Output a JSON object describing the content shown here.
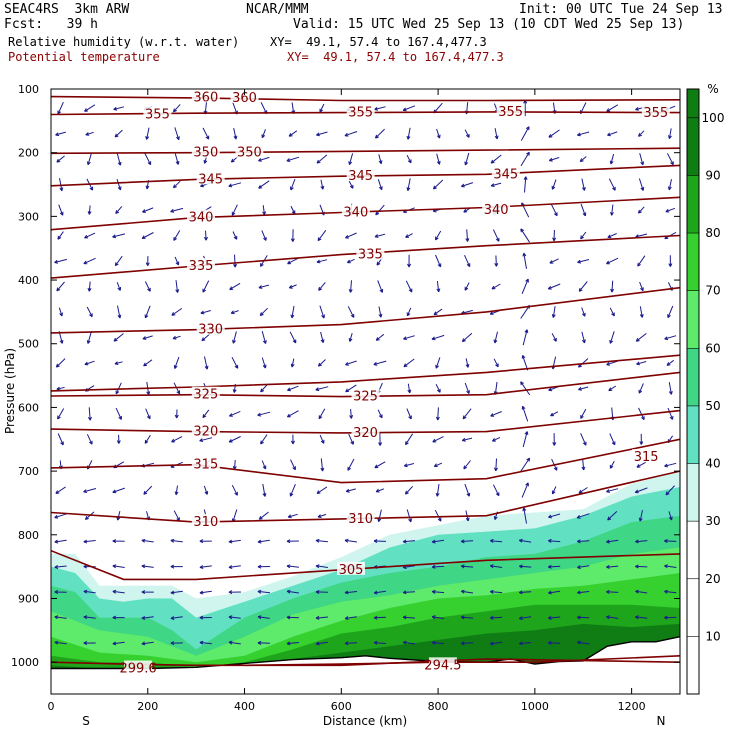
{
  "header": {
    "model": "SEAC4RS  3km ARW",
    "center": "NCAR/MMM",
    "init": "Init: 00 UTC Tue 24 Sep 13",
    "fcst": "Fcst:   39 h",
    "valid": "Valid: 15 UTC Wed 25 Sep 13 (10 CDT Wed 25 Sep 13)",
    "field1": "Relative humidity (w.r.t. water)",
    "field1_xy": "XY=  49.1, 57.4 to 167.4,477.3",
    "field2": "Potential temperature",
    "field2_xy": "XY=  49.1, 57.4 to 167.4,477.3"
  },
  "chart_data": {
    "type": "cross-section",
    "xlabel": "Distance (km)",
    "ylabel": "Pressure (hPa)",
    "xlim": [
      0,
      1300
    ],
    "ylim": [
      1050,
      100
    ],
    "x_ticks": [
      0,
      200,
      400,
      600,
      800,
      1000,
      1200
    ],
    "y_ticks": [
      100,
      200,
      300,
      400,
      500,
      600,
      700,
      800,
      900,
      1000
    ],
    "end_labels": {
      "left": "S",
      "right": "N"
    },
    "colorbar": {
      "unit": "%",
      "ticks": [
        10,
        20,
        30,
        40,
        50,
        60,
        70,
        80,
        90,
        100
      ],
      "bins": [
        {
          "range": [
            0,
            10
          ],
          "color": "#ffffff"
        },
        {
          "range": [
            10,
            20
          ],
          "color": "#ffffff"
        },
        {
          "range": [
            20,
            30
          ],
          "color": "#ffffff"
        },
        {
          "range": [
            30,
            40
          ],
          "color": "#cff5ee"
        },
        {
          "range": [
            40,
            50
          ],
          "color": "#62e0c2"
        },
        {
          "range": [
            50,
            60
          ],
          "color": "#3fd685"
        },
        {
          "range": [
            60,
            70
          ],
          "color": "#5eea6a"
        },
        {
          "range": [
            70,
            80
          ],
          "color": "#36d12f"
        },
        {
          "range": [
            80,
            90
          ],
          "color": "#1fa51c"
        },
        {
          "range": [
            90,
            105
          ],
          "color": "#0f7d14"
        }
      ]
    },
    "theta_contours": [
      {
        "label": "360",
        "x": [
          0,
          300,
          600,
          900,
          1300
        ],
        "y": [
          112,
          114,
          118,
          118,
          117
        ],
        "label_at": [
          [
            320,
            113
          ],
          [
            400,
            114
          ]
        ]
      },
      {
        "label": "355",
        "x": [
          0,
          300,
          600,
          900,
          1300
        ],
        "y": [
          140,
          138,
          137,
          136,
          137
        ],
        "label_at": [
          [
            220,
            140
          ],
          [
            640,
            137
          ],
          [
            950,
            136
          ],
          [
            1250,
            138
          ]
        ]
      },
      {
        "label": "350",
        "x": [
          0,
          300,
          600,
          900,
          1300
        ],
        "y": [
          201,
          200,
          198,
          196,
          193
        ],
        "label_at": [
          [
            320,
            200
          ],
          [
            410,
            200
          ]
        ]
      },
      {
        "label": "345",
        "x": [
          0,
          300,
          600,
          900,
          1300
        ],
        "y": [
          252,
          242,
          237,
          234,
          220
        ],
        "label_at": [
          [
            330,
            242
          ],
          [
            640,
            237
          ],
          [
            940,
            234
          ]
        ]
      },
      {
        "label": "340",
        "x": [
          0,
          300,
          600,
          900,
          1300
        ],
        "y": [
          321,
          302,
          294,
          286,
          270
        ],
        "label_at": [
          [
            310,
            302
          ],
          [
            630,
            294
          ],
          [
            920,
            290
          ]
        ]
      },
      {
        "label": "335",
        "x": [
          0,
          300,
          600,
          900,
          1300
        ],
        "y": [
          397,
          378,
          360,
          346,
          330
        ],
        "label_at": [
          [
            310,
            378
          ],
          [
            660,
            360
          ]
        ]
      },
      {
        "label": "330",
        "x": [
          0,
          300,
          600,
          900,
          1300
        ],
        "y": [
          483,
          478,
          470,
          450,
          412
        ],
        "label_at": [
          [
            330,
            478
          ]
        ]
      },
      {
        "label": "",
        "x": [
          0,
          300,
          600,
          900,
          1300
        ],
        "y": [
          574,
          568,
          560,
          545,
          518
        ],
        "label_at": []
      },
      {
        "label": "325",
        "x": [
          0,
          300,
          600,
          900,
          1300
        ],
        "y": [
          582,
          580,
          583,
          580,
          545
        ],
        "label_at": [
          [
            320,
            580
          ],
          [
            650,
            583
          ]
        ]
      },
      {
        "label": "320",
        "x": [
          0,
          300,
          600,
          900,
          1300
        ],
        "y": [
          634,
          638,
          640,
          638,
          605
        ],
        "label_at": [
          [
            320,
            638
          ],
          [
            650,
            640
          ]
        ]
      },
      {
        "label": "315",
        "x": [
          0,
          300,
          600,
          900,
          1300
        ],
        "y": [
          695,
          690,
          718,
          712,
          650
        ],
        "label_at": [
          [
            320,
            690
          ],
          [
            1230,
            678
          ]
        ]
      },
      {
        "label": "310",
        "x": [
          0,
          300,
          600,
          900,
          1300
        ],
        "y": [
          765,
          780,
          775,
          770,
          700
        ],
        "label_at": [
          [
            320,
            780
          ],
          [
            640,
            775
          ]
        ]
      },
      {
        "label": "305",
        "x": [
          0,
          150,
          300,
          600,
          900,
          1300
        ],
        "y": [
          825,
          870,
          870,
          855,
          840,
          830
        ],
        "label_at": [
          [
            620,
            855
          ]
        ]
      },
      {
        "label": "299.6",
        "x": [
          0,
          150,
          300,
          600,
          900,
          1300
        ],
        "y": [
          1000,
          1003,
          1005,
          1005,
          995,
          1000
        ],
        "label_at": [
          [
            180,
            1010
          ]
        ]
      },
      {
        "label": "294.5",
        "x": [
          400,
          600,
          800,
          1000,
          1300
        ],
        "y": [
          1005,
          1003,
          1000,
          1000,
          990
        ],
        "label_at": [
          [
            810,
            1005
          ]
        ]
      }
    ],
    "terrain": {
      "x": [
        0,
        100,
        200,
        300,
        400,
        500,
        600,
        650,
        700,
        800,
        900,
        950,
        1000,
        1050,
        1100,
        1150,
        1200,
        1250,
        1300
      ],
      "p": [
        1010,
        1010,
        1010,
        1008,
        1002,
        996,
        993,
        990,
        994,
        999,
        1000,
        995,
        1003,
        999,
        998,
        975,
        968,
        968,
        960
      ]
    },
    "rh_shading": [
      {
        "range": [
          30,
          40
        ],
        "x": [
          0,
          50,
          100,
          150,
          200,
          250,
          300,
          400,
          500,
          600,
          700,
          800,
          900,
          1000,
          1100,
          1200,
          1300
        ],
        "top": [
          830,
          830,
          880,
          880,
          880,
          880,
          900,
          890,
          865,
          835,
          800,
          785,
          770,
          765,
          760,
          720,
          700
        ]
      },
      {
        "range": [
          40,
          50
        ],
        "x": [
          0,
          50,
          100,
          150,
          200,
          250,
          300,
          400,
          500,
          600,
          700,
          800,
          900,
          1000,
          1100,
          1200,
          1300
        ],
        "top": [
          850,
          860,
          900,
          905,
          900,
          900,
          930,
          905,
          880,
          855,
          820,
          800,
          795,
          790,
          770,
          740,
          725
        ]
      },
      {
        "range": [
          50,
          60
        ],
        "x": [
          0,
          50,
          100,
          150,
          200,
          250,
          300,
          400,
          500,
          600,
          700,
          800,
          900,
          1000,
          1100,
          1200,
          1300
        ],
        "top": [
          880,
          890,
          930,
          930,
          930,
          950,
          980,
          930,
          900,
          875,
          860,
          850,
          835,
          830,
          810,
          780,
          770
        ]
      },
      {
        "range": [
          60,
          70
        ],
        "x": [
          0,
          100,
          200,
          300,
          400,
          500,
          600,
          700,
          800,
          900,
          1000,
          1100,
          1200,
          1300
        ],
        "top": [
          920,
          950,
          960,
          990,
          960,
          925,
          905,
          895,
          880,
          870,
          860,
          850,
          830,
          820
        ]
      },
      {
        "range": [
          70,
          80
        ],
        "x": [
          0,
          100,
          200,
          300,
          400,
          500,
          600,
          700,
          800,
          900,
          1000,
          1100,
          1200,
          1300
        ],
        "top": [
          960,
          985,
          990,
          1000,
          990,
          960,
          935,
          915,
          900,
          895,
          885,
          880,
          870,
          860
        ]
      },
      {
        "range": [
          80,
          90
        ],
        "x": [
          0,
          100,
          200,
          300,
          400,
          500,
          600,
          700,
          800,
          900,
          1000,
          1100,
          1200,
          1300
        ],
        "top": [
          990,
          1000,
          1000,
          1008,
          1000,
          980,
          955,
          945,
          930,
          920,
          910,
          910,
          910,
          915
        ]
      },
      {
        "range": [
          90,
          105
        ],
        "x": [
          0,
          100,
          200,
          300,
          400,
          500,
          600,
          700,
          800,
          900,
          1000,
          1100,
          1200,
          1300
        ],
        "top": [
          1005,
          1010,
          1010,
          1010,
          1005,
          995,
          985,
          975,
          965,
          955,
          950,
          940,
          945,
          940
        ]
      }
    ],
    "wind_vectors": {
      "color": "#1a1a8c",
      "note_x_km": [
        20,
        80,
        140,
        200,
        260,
        320,
        380,
        440,
        500,
        560,
        620,
        680,
        740,
        800,
        860,
        920,
        980,
        1040,
        1100,
        1160,
        1220,
        1280
      ],
      "note_p_hpa": [
        130,
        170,
        210,
        250,
        290,
        330,
        370,
        410,
        450,
        490,
        530,
        570,
        610,
        650,
        690,
        730,
        770,
        810,
        850,
        890,
        930,
        970
      ]
    }
  }
}
